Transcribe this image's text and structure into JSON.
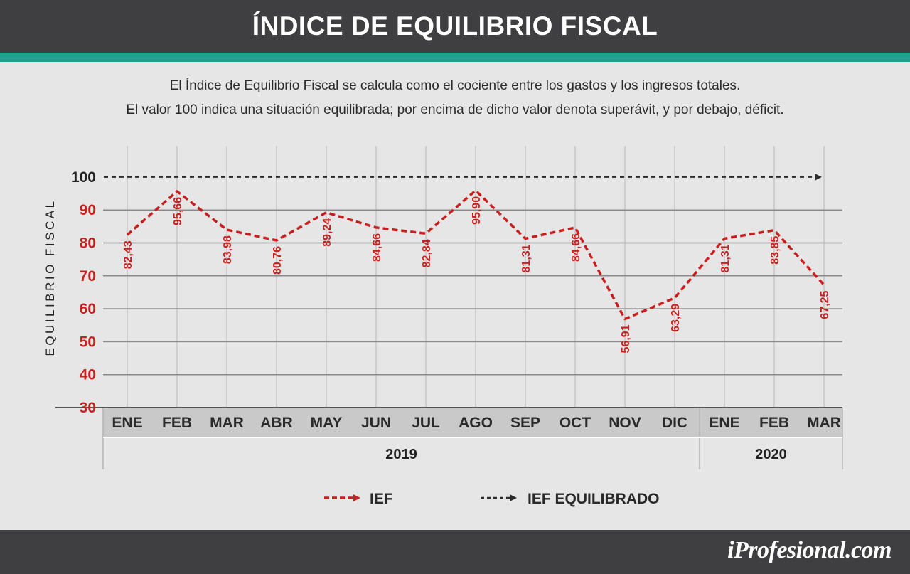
{
  "title": "ÍNDICE DE EQUILIBRIO FISCAL",
  "description": [
    "El Índice de Equilibrio Fiscal se calcula como el cociente entre los gastos y los ingresos totales.",
    "El valor 100 indica una situación equilibrada; por encima de dicho valor denota superávit, y por debajo, déficit."
  ],
  "brand": "iProfesional.com",
  "colors": {
    "header": "#3f3f41",
    "accent": "#21a08d",
    "series": "#c8201f",
    "reference": "#2b2b2b",
    "background": "#e6e6e6",
    "axis_band": "#c9c9c9"
  },
  "chart_data": {
    "type": "line",
    "ylabel": "EQUILIBRIO FISCAL",
    "ylim": [
      30,
      100
    ],
    "yticks": [
      "100",
      "90",
      "80",
      "70",
      "60",
      "50",
      "40",
      "30"
    ],
    "categories": [
      "ENE",
      "FEB",
      "MAR",
      "ABR",
      "MAY",
      "JUN",
      "JUL",
      "AGO",
      "SEP",
      "OCT",
      "NOV",
      "DIC",
      "ENE",
      "FEB",
      "MAR"
    ],
    "year_groups": [
      {
        "label": "2019",
        "count": 12
      },
      {
        "label": "2020",
        "count": 3
      }
    ],
    "series": [
      {
        "name": "IEF",
        "values": [
          82.43,
          95.66,
          83.98,
          80.76,
          89.24,
          84.66,
          82.84,
          95.9,
          81.31,
          84.66,
          56.91,
          63.29,
          81.31,
          83.85,
          67.25
        ],
        "labels": [
          "82,43",
          "95,66",
          "83,98",
          "80,76",
          "89,24",
          "84,66",
          "82,84",
          "95,90",
          "81,31",
          "84,66",
          "56,91",
          "63,29",
          "81,31",
          "83,85",
          "67,25"
        ]
      },
      {
        "name": "IEF EQUILIBRADO",
        "values": [
          100,
          100,
          100,
          100,
          100,
          100,
          100,
          100,
          100,
          100,
          100,
          100,
          100,
          100,
          100
        ]
      }
    ],
    "grid": true,
    "legend": "bottom-center"
  }
}
